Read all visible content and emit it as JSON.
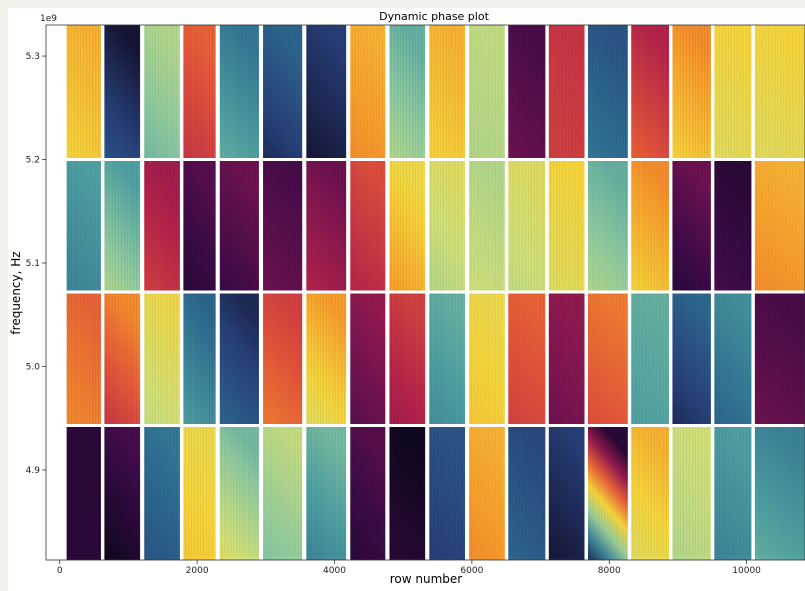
{
  "chart_data": {
    "type": "heatmap",
    "title": "Dynamic phase plot",
    "xlabel": "row number",
    "ylabel": "frequency, Hz",
    "y_offset_text": "1e9",
    "xlim": [
      -200,
      10850
    ],
    "ylim": [
      4813000000.0,
      5330000000.0
    ],
    "x_ticks": [
      0,
      2000,
      4000,
      6000,
      8000,
      10000
    ],
    "x_tick_labels": [
      "0",
      "2000",
      "4000",
      "6000",
      "8000",
      "10000"
    ],
    "y_ticks": [
      4900000000.0,
      5000000000.0,
      5100000000.0,
      5200000000.0,
      5300000000.0
    ],
    "y_tick_labels": [
      "4.9",
      "5.0",
      "5.1",
      "5.2",
      "5.3"
    ],
    "colormap": "inferno-to-viridis cyclic phase",
    "colormap_stops": [
      "#10081f",
      "#3b0a48",
      "#7a1451",
      "#b5234a",
      "#e4553a",
      "#f79a2b",
      "#f6d53c",
      "#cfe07a",
      "#8ecaa0",
      "#4ea0a2",
      "#2f6f92",
      "#27407a",
      "#10081f"
    ],
    "band_edges_hz": [
      4943000000.0,
      5072000000.0,
      5200000000.0
    ],
    "segment_edges_rows": [
      [
        100,
        600
      ],
      [
        650,
        1170
      ],
      [
        1230,
        1750
      ],
      [
        1800,
        2270
      ],
      [
        2330,
        2900
      ],
      [
        2960,
        3530
      ],
      [
        3590,
        4170
      ],
      [
        4230,
        4740
      ],
      [
        4800,
        5320
      ],
      [
        5380,
        5900
      ],
      [
        5960,
        6480
      ],
      [
        6530,
        7070
      ],
      [
        7120,
        7640
      ],
      [
        7690,
        8270
      ],
      [
        8320,
        8870
      ],
      [
        8920,
        9480
      ],
      [
        9530,
        10070
      ],
      [
        10120,
        10850
      ]
    ],
    "segments_phase_turns": [
      [
        [
          0.05,
          0.05
        ],
        [
          0.4,
          0.35
        ],
        [
          0.8,
          0.75
        ],
        [
          0.5,
          0.45
        ]
      ],
      [
        [
          0.0,
          0.1
        ],
        [
          0.28,
          0.4
        ],
        [
          0.62,
          0.75
        ],
        [
          0.88,
          0.98
        ]
      ],
      [
        [
          0.88,
          0.82
        ],
        [
          0.6,
          0.52
        ],
        [
          0.3,
          0.22
        ],
        [
          0.7,
          0.62
        ]
      ],
      [
        [
          0.48,
          0.52
        ],
        [
          0.75,
          0.85
        ],
        [
          0.05,
          0.12
        ],
        [
          0.28,
          0.35
        ]
      ],
      [
        [
          0.55,
          0.7
        ],
        [
          0.85,
          0.95
        ],
        [
          0.08,
          0.15
        ],
        [
          0.72,
          0.82
        ]
      ],
      [
        [
          0.68,
          0.6
        ],
        [
          0.38,
          0.3
        ],
        [
          0.15,
          0.1
        ],
        [
          0.95,
          0.85
        ]
      ],
      [
        [
          0.8,
          0.7
        ],
        [
          0.55,
          0.42
        ],
        [
          0.25,
          0.15
        ],
        [
          0.98,
          0.92
        ]
      ],
      [
        [
          0.05,
          0.12
        ],
        [
          0.12,
          0.2
        ],
        [
          0.25,
          0.32
        ],
        [
          0.4,
          0.45
        ]
      ],
      [
        [
          0.05,
          0.0
        ],
        [
          0.22,
          0.3
        ],
        [
          0.42,
          0.52
        ],
        [
          0.62,
          0.72
        ]
      ],
      [
        [
          0.92,
          0.88
        ],
        [
          0.78,
          0.72
        ],
        [
          0.62,
          0.55
        ],
        [
          0.5,
          0.45
        ]
      ],
      [
        [
          0.4,
          0.45
        ],
        [
          0.48,
          0.52
        ],
        [
          0.58,
          0.62
        ],
        [
          0.62,
          0.6
        ]
      ],
      [
        [
          0.85,
          0.9
        ],
        [
          0.3,
          0.35
        ],
        [
          0.6,
          0.55
        ],
        [
          0.15,
          0.1
        ]
      ],
      [
        [
          0.98,
          0.92
        ],
        [
          0.15,
          0.2
        ],
        [
          0.55,
          0.5
        ],
        [
          0.3,
          0.28
        ]
      ],
      [
        [
          0.95,
          0.05
        ],
        [
          0.32,
          0.38
        ],
        [
          0.62,
          0.72
        ],
        [
          0.82,
          0.88
        ]
      ],
      [
        [
          0.55,
          0.45
        ],
        [
          0.75,
          0.72
        ],
        [
          0.5,
          0.4
        ],
        [
          0.35,
          0.25
        ]
      ],
      [
        [
          0.62,
          0.58
        ],
        [
          0.95,
          0.85
        ],
        [
          0.05,
          0.15
        ],
        [
          0.5,
          0.4
        ]
      ],
      [
        [
          0.8,
          0.75
        ],
        [
          0.85,
          0.78
        ],
        [
          0.1,
          0.05
        ],
        [
          0.55,
          0.5
        ]
      ],
      [
        [
          0.72,
          0.8
        ],
        [
          0.15,
          0.1
        ],
        [
          0.4,
          0.45
        ],
        [
          0.55,
          0.5
        ]
      ]
    ]
  }
}
